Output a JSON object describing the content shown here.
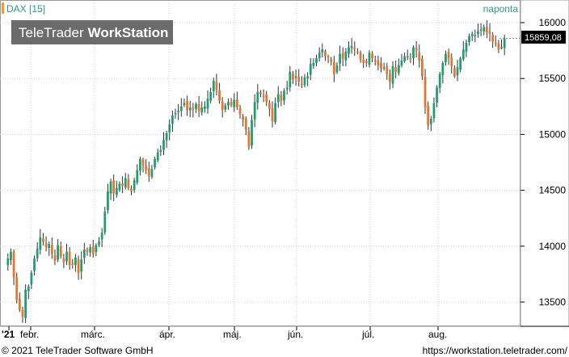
{
  "header": {
    "symbol_label": "DAX [15]",
    "period_label": "naponta",
    "watermark_text": "TeleTrader",
    "watermark_bold": "WorkStation"
  },
  "footer": {
    "copyright": "© 2021  TeleTrader Software GmbH",
    "url": "https://workstation.teletrader.com/"
  },
  "colors": {
    "up": "#1e9e6e",
    "down": "#e8732a",
    "accent": "#f2a01c",
    "grid": "#cccccc",
    "last_price_bg": "#000000"
  },
  "chart_data": {
    "type": "candlestick",
    "title": "DAX [15]",
    "interval": "naponta",
    "y_ticks": [
      13500,
      14000,
      14500,
      15000,
      15500,
      16000
    ],
    "ylim": [
      13300,
      16100
    ],
    "x_tick_labels": [
      "'21",
      "febr.",
      "márc.",
      "ápr.",
      "máj.",
      "jún.",
      "júl.",
      "aug."
    ],
    "last_price": "15859,08",
    "last_value": 15859.08,
    "num_candles": 170,
    "candle_up_color": "#1e9e6e",
    "candle_down_color": "#e8732a",
    "closes": [
      13890,
      13950,
      13720,
      13520,
      13430,
      13370,
      13610,
      13640,
      13760,
      13890,
      13980,
      14080,
      14040,
      13990,
      14020,
      13930,
      13870,
      14010,
      13910,
      13860,
      13950,
      13830,
      13840,
      13900,
      13760,
      13880,
      13970,
      13950,
      13990,
      13930,
      14010,
      14040,
      14120,
      14310,
      14490,
      14580,
      14470,
      14520,
      14560,
      14540,
      14610,
      14520,
      14490,
      14590,
      14680,
      14780,
      14720,
      14680,
      14630,
      14690,
      14780,
      14840,
      14860,
      14950,
      15010,
      15090,
      15170,
      15190,
      15210,
      15250,
      15280,
      15220,
      15240,
      15220,
      15270,
      15210,
      15240,
      15250,
      15320,
      15380,
      15480,
      15400,
      15300,
      15220,
      15260,
      15290,
      15260,
      15310,
      15240,
      15180,
      15130,
      15040,
      14890,
      15130,
      15290,
      15380,
      15360,
      15340,
      15290,
      15230,
      15120,
      15280,
      15360,
      15300,
      15390,
      15420,
      15560,
      15490,
      15520,
      15470,
      15450,
      15510,
      15520,
      15630,
      15640,
      15680,
      15730,
      15760,
      15700,
      15690,
      15650,
      15540,
      15620,
      15720,
      15680,
      15740,
      15780,
      15790,
      15760,
      15740,
      15670,
      15640,
      15640,
      15730,
      15680,
      15650,
      15620,
      15590,
      15600,
      15540,
      15470,
      15610,
      15560,
      15620,
      15660,
      15700,
      15700,
      15680,
      15780,
      15750,
      15660,
      15520,
      15240,
      15080,
      15140,
      15280,
      15420,
      15540,
      15640,
      15720,
      15680,
      15610,
      15520,
      15600,
      15680,
      15760,
      15820,
      15880,
      15900,
      15890,
      15920,
      15940,
      15960,
      15910,
      15900,
      15830,
      15820,
      15760,
      15780,
      15859.08
    ]
  }
}
